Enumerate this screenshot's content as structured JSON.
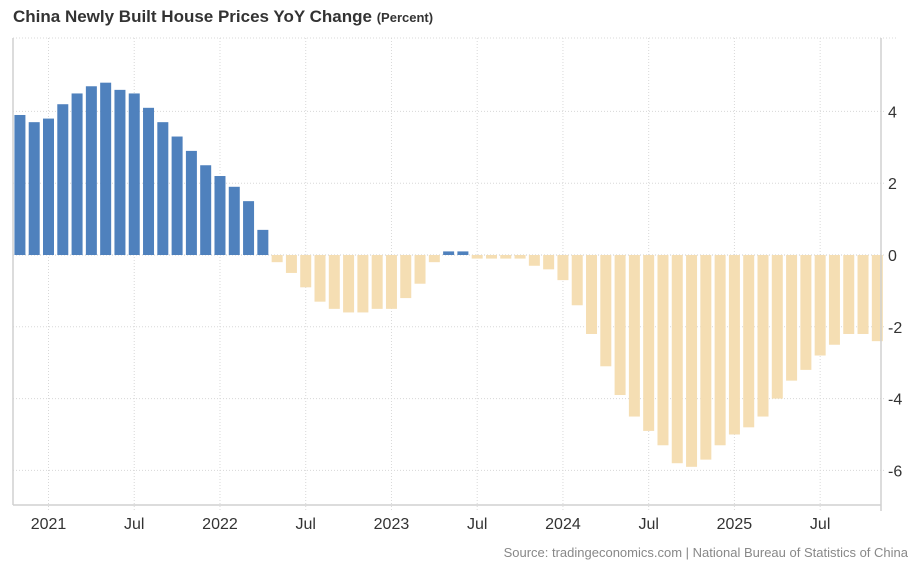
{
  "chart_data": {
    "type": "bar",
    "title": "China Newly Built House Prices YoY Change",
    "unit": "(Percent)",
    "xlabel": "",
    "ylabel": "",
    "ylim": [
      -7,
      6
    ],
    "y_ticks": [
      4,
      2,
      0,
      -2,
      -4,
      -6
    ],
    "y_tick_labels": [
      "4",
      "2",
      "0",
      "-2",
      "-4",
      "-6"
    ],
    "x_tick_labels": [
      {
        "label": "2021",
        "month": "2021-01"
      },
      {
        "label": "Jul",
        "month": "2021-07"
      },
      {
        "label": "2022",
        "month": "2022-01"
      },
      {
        "label": "Jul",
        "month": "2022-07"
      },
      {
        "label": "2023",
        "month": "2023-01"
      },
      {
        "label": "Jul",
        "month": "2023-07"
      },
      {
        "label": "2024",
        "month": "2024-01"
      },
      {
        "label": "Jul",
        "month": "2024-07"
      },
      {
        "label": "2025",
        "month": "2025-01"
      },
      {
        "label": "Jul",
        "month": "2025-07"
      }
    ],
    "grid": true,
    "y_axis_position": "right",
    "colors": {
      "positive": "#4f81bd",
      "negative": "#f5deb3"
    },
    "categories": [
      "2020-11",
      "2020-12",
      "2021-01",
      "2021-02",
      "2021-03",
      "2021-04",
      "2021-05",
      "2021-06",
      "2021-07",
      "2021-08",
      "2021-09",
      "2021-10",
      "2021-11",
      "2021-12",
      "2022-01",
      "2022-02",
      "2022-03",
      "2022-04",
      "2022-05",
      "2022-06",
      "2022-07",
      "2022-08",
      "2022-09",
      "2022-10",
      "2022-11",
      "2022-12",
      "2023-01",
      "2023-02",
      "2023-03",
      "2023-04",
      "2023-05",
      "2023-06",
      "2023-07",
      "2023-08",
      "2023-09",
      "2023-10",
      "2023-11",
      "2023-12",
      "2024-01",
      "2024-02",
      "2024-03",
      "2024-04",
      "2024-05",
      "2024-06",
      "2024-07",
      "2024-08",
      "2024-09",
      "2024-10",
      "2024-11",
      "2024-12",
      "2025-01",
      "2025-02",
      "2025-03",
      "2025-04",
      "2025-05",
      "2025-06",
      "2025-07",
      "2025-08",
      "2025-09",
      "2025-10",
      "2025-11"
    ],
    "values": [
      3.9,
      3.7,
      3.8,
      4.2,
      4.5,
      4.7,
      4.8,
      4.6,
      4.5,
      4.1,
      3.7,
      3.3,
      2.9,
      2.5,
      2.2,
      1.9,
      1.5,
      0.7,
      -0.2,
      -0.5,
      -0.9,
      -1.3,
      -1.5,
      -1.6,
      -1.6,
      -1.5,
      -1.5,
      -1.2,
      -0.8,
      -0.2,
      0.1,
      0.1,
      -0.1,
      -0.1,
      -0.1,
      -0.1,
      -0.3,
      -0.4,
      -0.7,
      -1.4,
      -2.2,
      -3.1,
      -3.9,
      -4.5,
      -4.9,
      -5.3,
      -5.8,
      -5.9,
      -5.7,
      -5.3,
      -5.0,
      -4.8,
      -4.5,
      -4.0,
      -3.5,
      -3.2,
      -2.8,
      -2.5,
      -2.2,
      -2.2,
      -2.4
    ]
  },
  "source": "Source: tradingeconomics.com | National Bureau of Statistics of China"
}
